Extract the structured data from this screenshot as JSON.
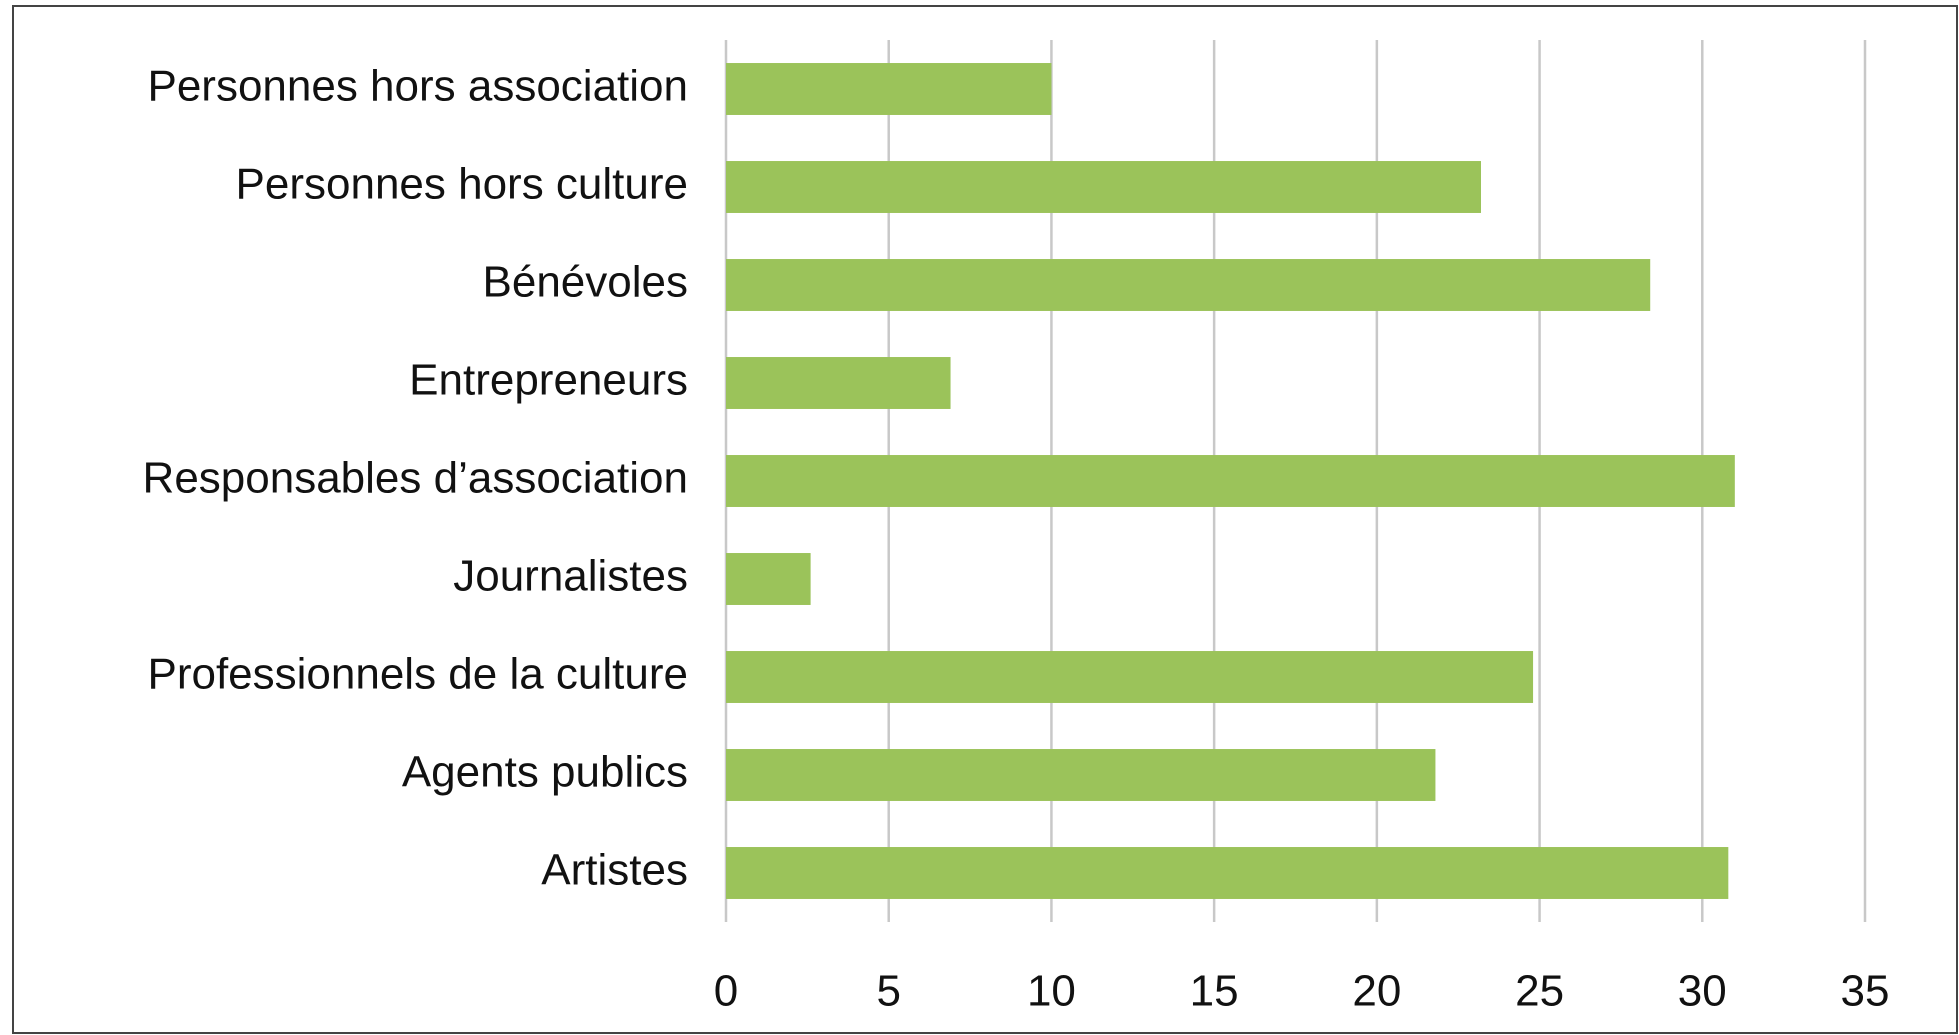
{
  "chart_data": {
    "type": "bar",
    "categories": [
      "Personnes hors association",
      "Personnes hors culture",
      "Bénévoles",
      "Entrepreneurs",
      "Responsables d’association",
      "Journalistes",
      "Professionnels de la culture",
      "Agents publics",
      "Artistes"
    ],
    "values": [
      10,
      23.2,
      28.4,
      6.9,
      31,
      2.6,
      24.8,
      21.8,
      30.8
    ],
    "color": "#9bc35a",
    "xlim": [
      0,
      35
    ],
    "xticks": [
      0,
      5,
      10,
      15,
      20,
      25,
      30,
      35
    ],
    "grid": true
  }
}
